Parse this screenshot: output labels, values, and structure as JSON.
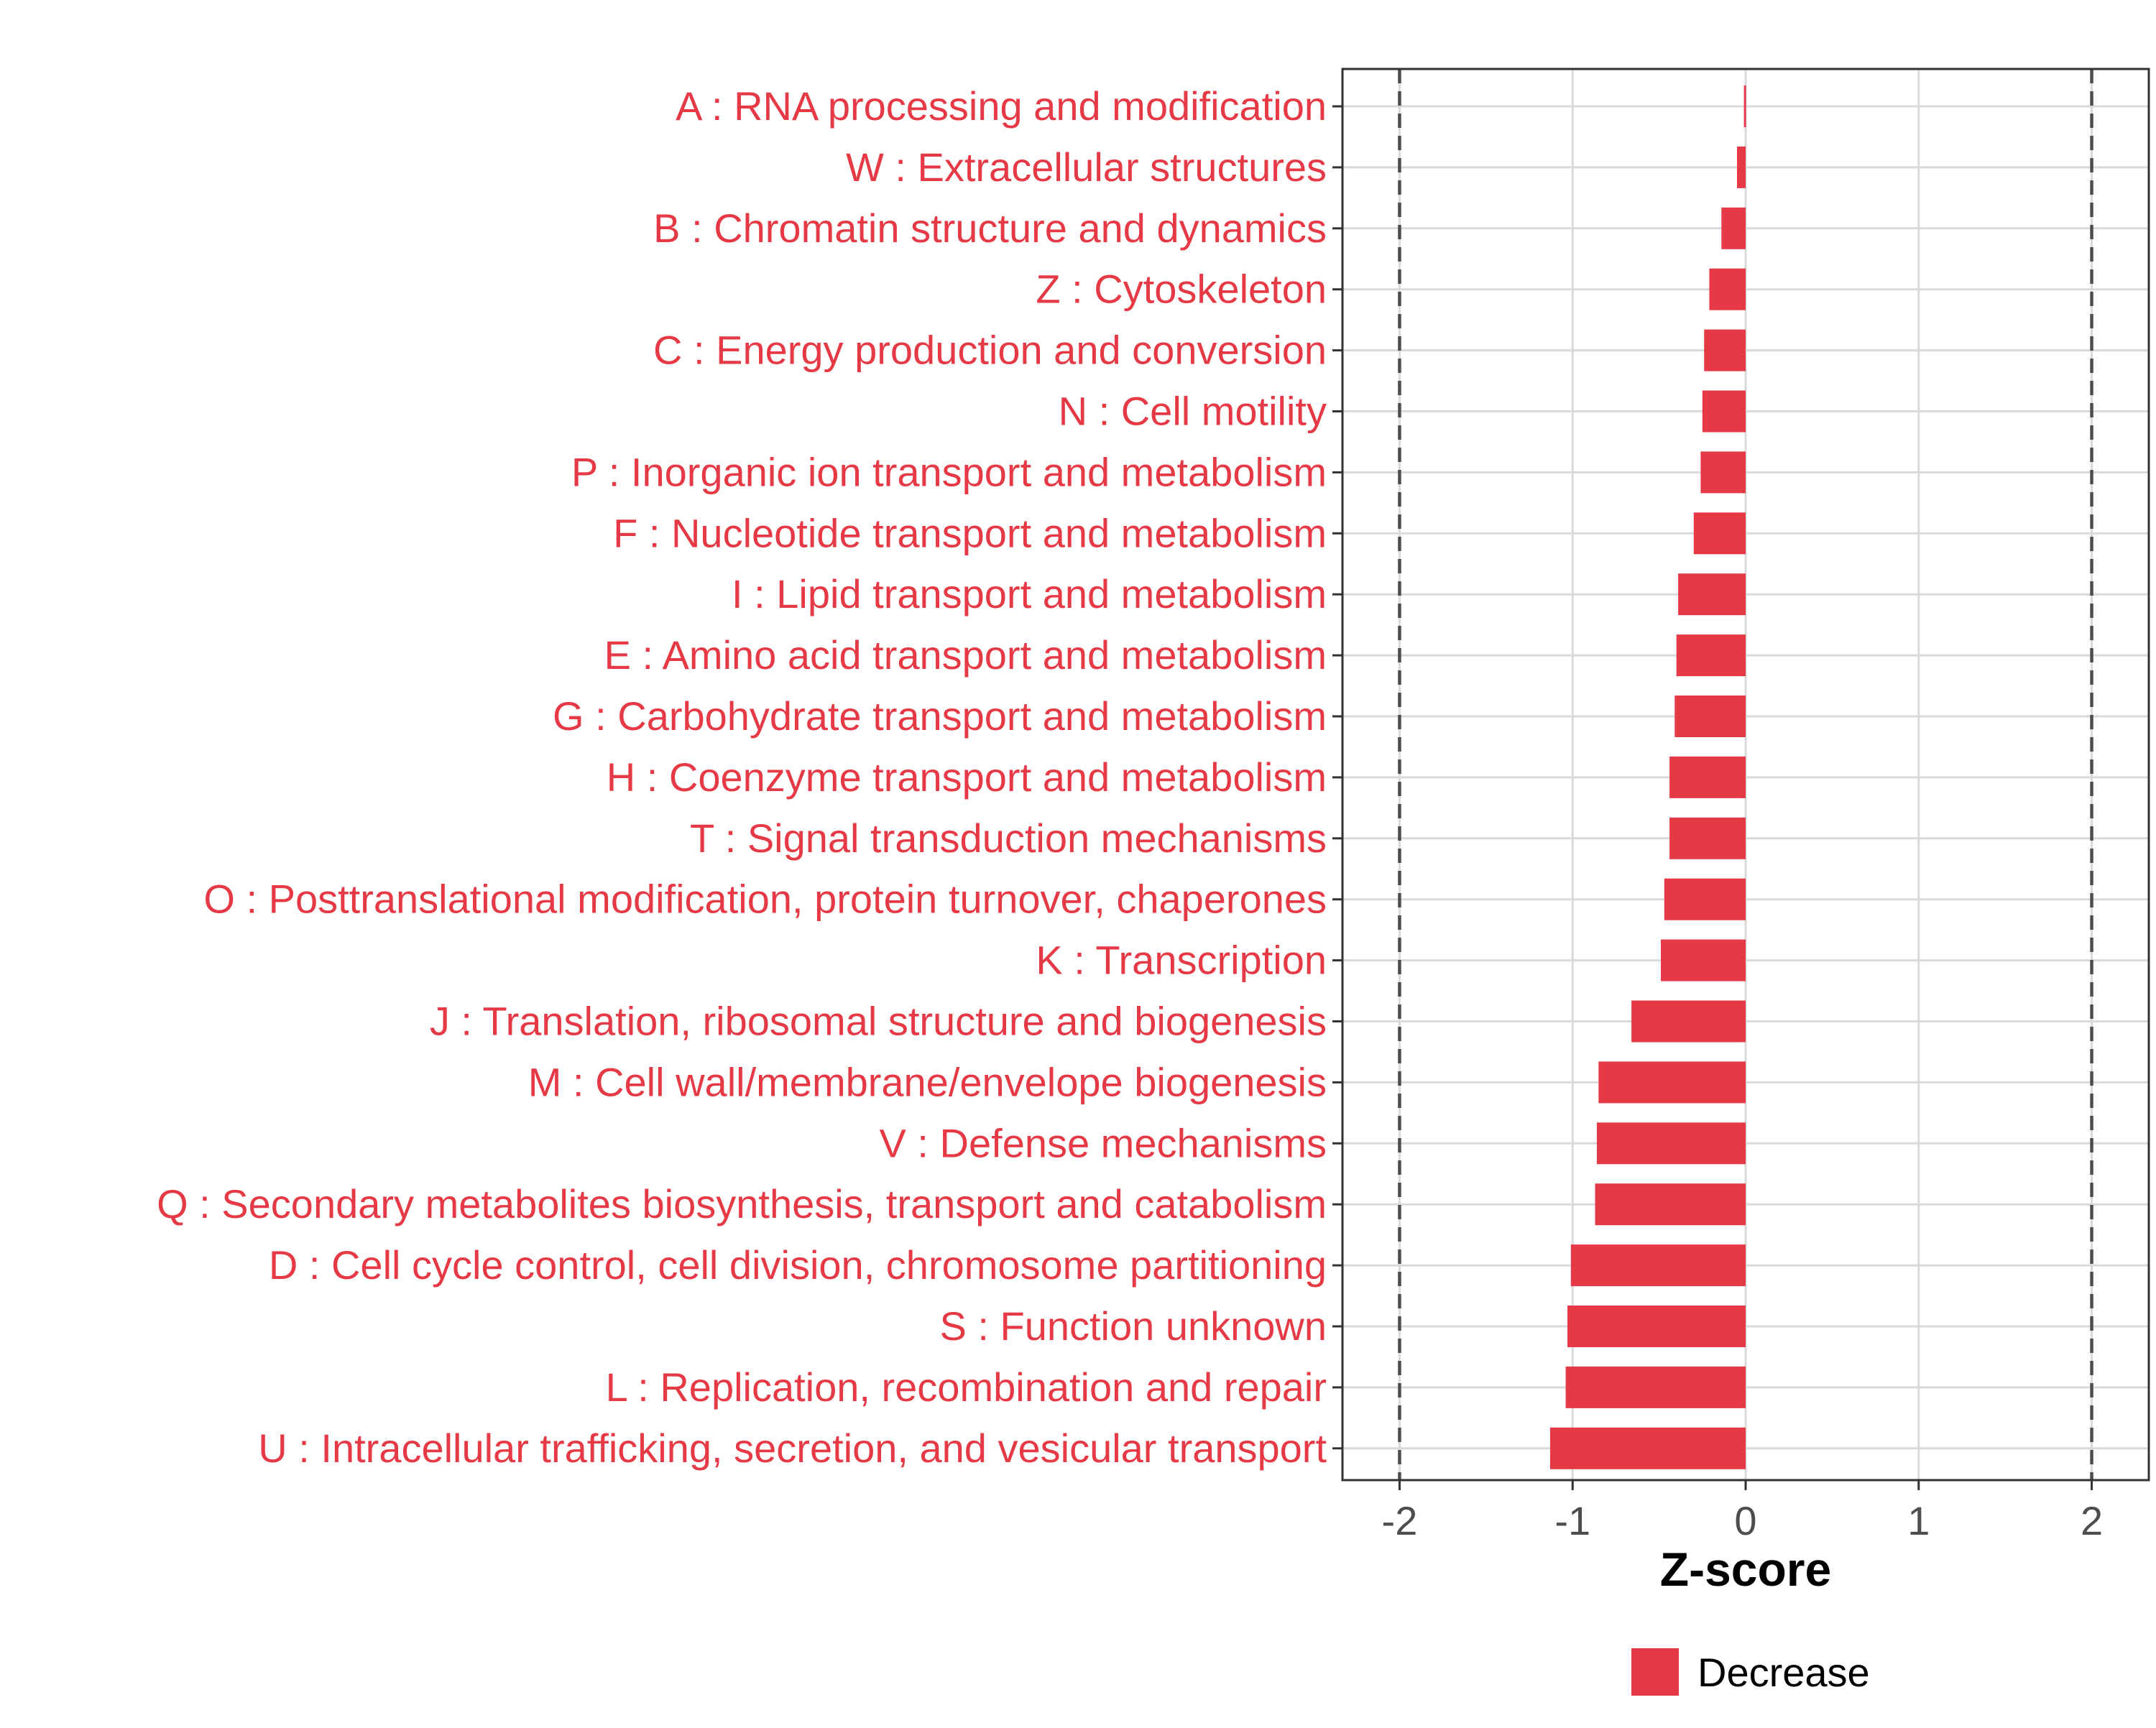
{
  "colors": {
    "decrease": "#E63946",
    "grid": "#D9D9D9",
    "axis_text": "#4D4D4D",
    "reference_line": "#4D4D4D",
    "frame": "#333333"
  },
  "chart_data": {
    "type": "bar",
    "orientation": "horizontal",
    "title": "",
    "xlabel": "Z-score",
    "ylabel": "",
    "xlim": [
      -2.33,
      2.33
    ],
    "x_ticks": [
      {
        "value": -2,
        "label": "-2"
      },
      {
        "value": -1,
        "label": "-1"
      },
      {
        "value": 0,
        "label": "0"
      },
      {
        "value": 1,
        "label": "1"
      },
      {
        "value": 2,
        "label": "2"
      }
    ],
    "reference_lines": [
      -2,
      2
    ],
    "grid": true,
    "legend": {
      "placement": "bottom",
      "entries": [
        {
          "label": "Decrease",
          "color": "#E63946"
        }
      ]
    },
    "categories": [
      "A : RNA processing and modification",
      "W : Extracellular structures",
      "B : Chromatin structure and dynamics",
      "Z : Cytoskeleton",
      "C : Energy production and conversion",
      "N : Cell motility",
      "P : Inorganic ion transport and metabolism",
      "F : Nucleotide transport and metabolism",
      "I : Lipid transport and metabolism",
      "E : Amino acid transport and metabolism",
      "G : Carbohydrate transport and metabolism",
      "H : Coenzyme transport and metabolism",
      "T : Signal transduction mechanisms",
      "O : Posttranslational modification, protein turnover, chaperones",
      "K : Transcription",
      "J : Translation, ribosomal structure and biogenesis",
      "M : Cell wall/membrane/envelope biogenesis",
      "V : Defense mechanisms",
      "Q : Secondary metabolites biosynthesis, transport and catabolism",
      "D : Cell cycle control, cell division, chromosome partitioning",
      "S : Function unknown",
      "L : Replication, recombination and repair",
      "U : Intracellular trafficking, secretion, and vesicular transport"
    ],
    "series": [
      {
        "name": "Decrease",
        "values": [
          -0.01,
          -0.05,
          -0.14,
          -0.21,
          -0.24,
          -0.25,
          -0.26,
          -0.3,
          -0.39,
          -0.4,
          -0.41,
          -0.44,
          -0.44,
          -0.47,
          -0.49,
          -0.66,
          -0.85,
          -0.86,
          -0.87,
          -1.01,
          -1.03,
          -1.04,
          -1.13
        ]
      }
    ]
  }
}
